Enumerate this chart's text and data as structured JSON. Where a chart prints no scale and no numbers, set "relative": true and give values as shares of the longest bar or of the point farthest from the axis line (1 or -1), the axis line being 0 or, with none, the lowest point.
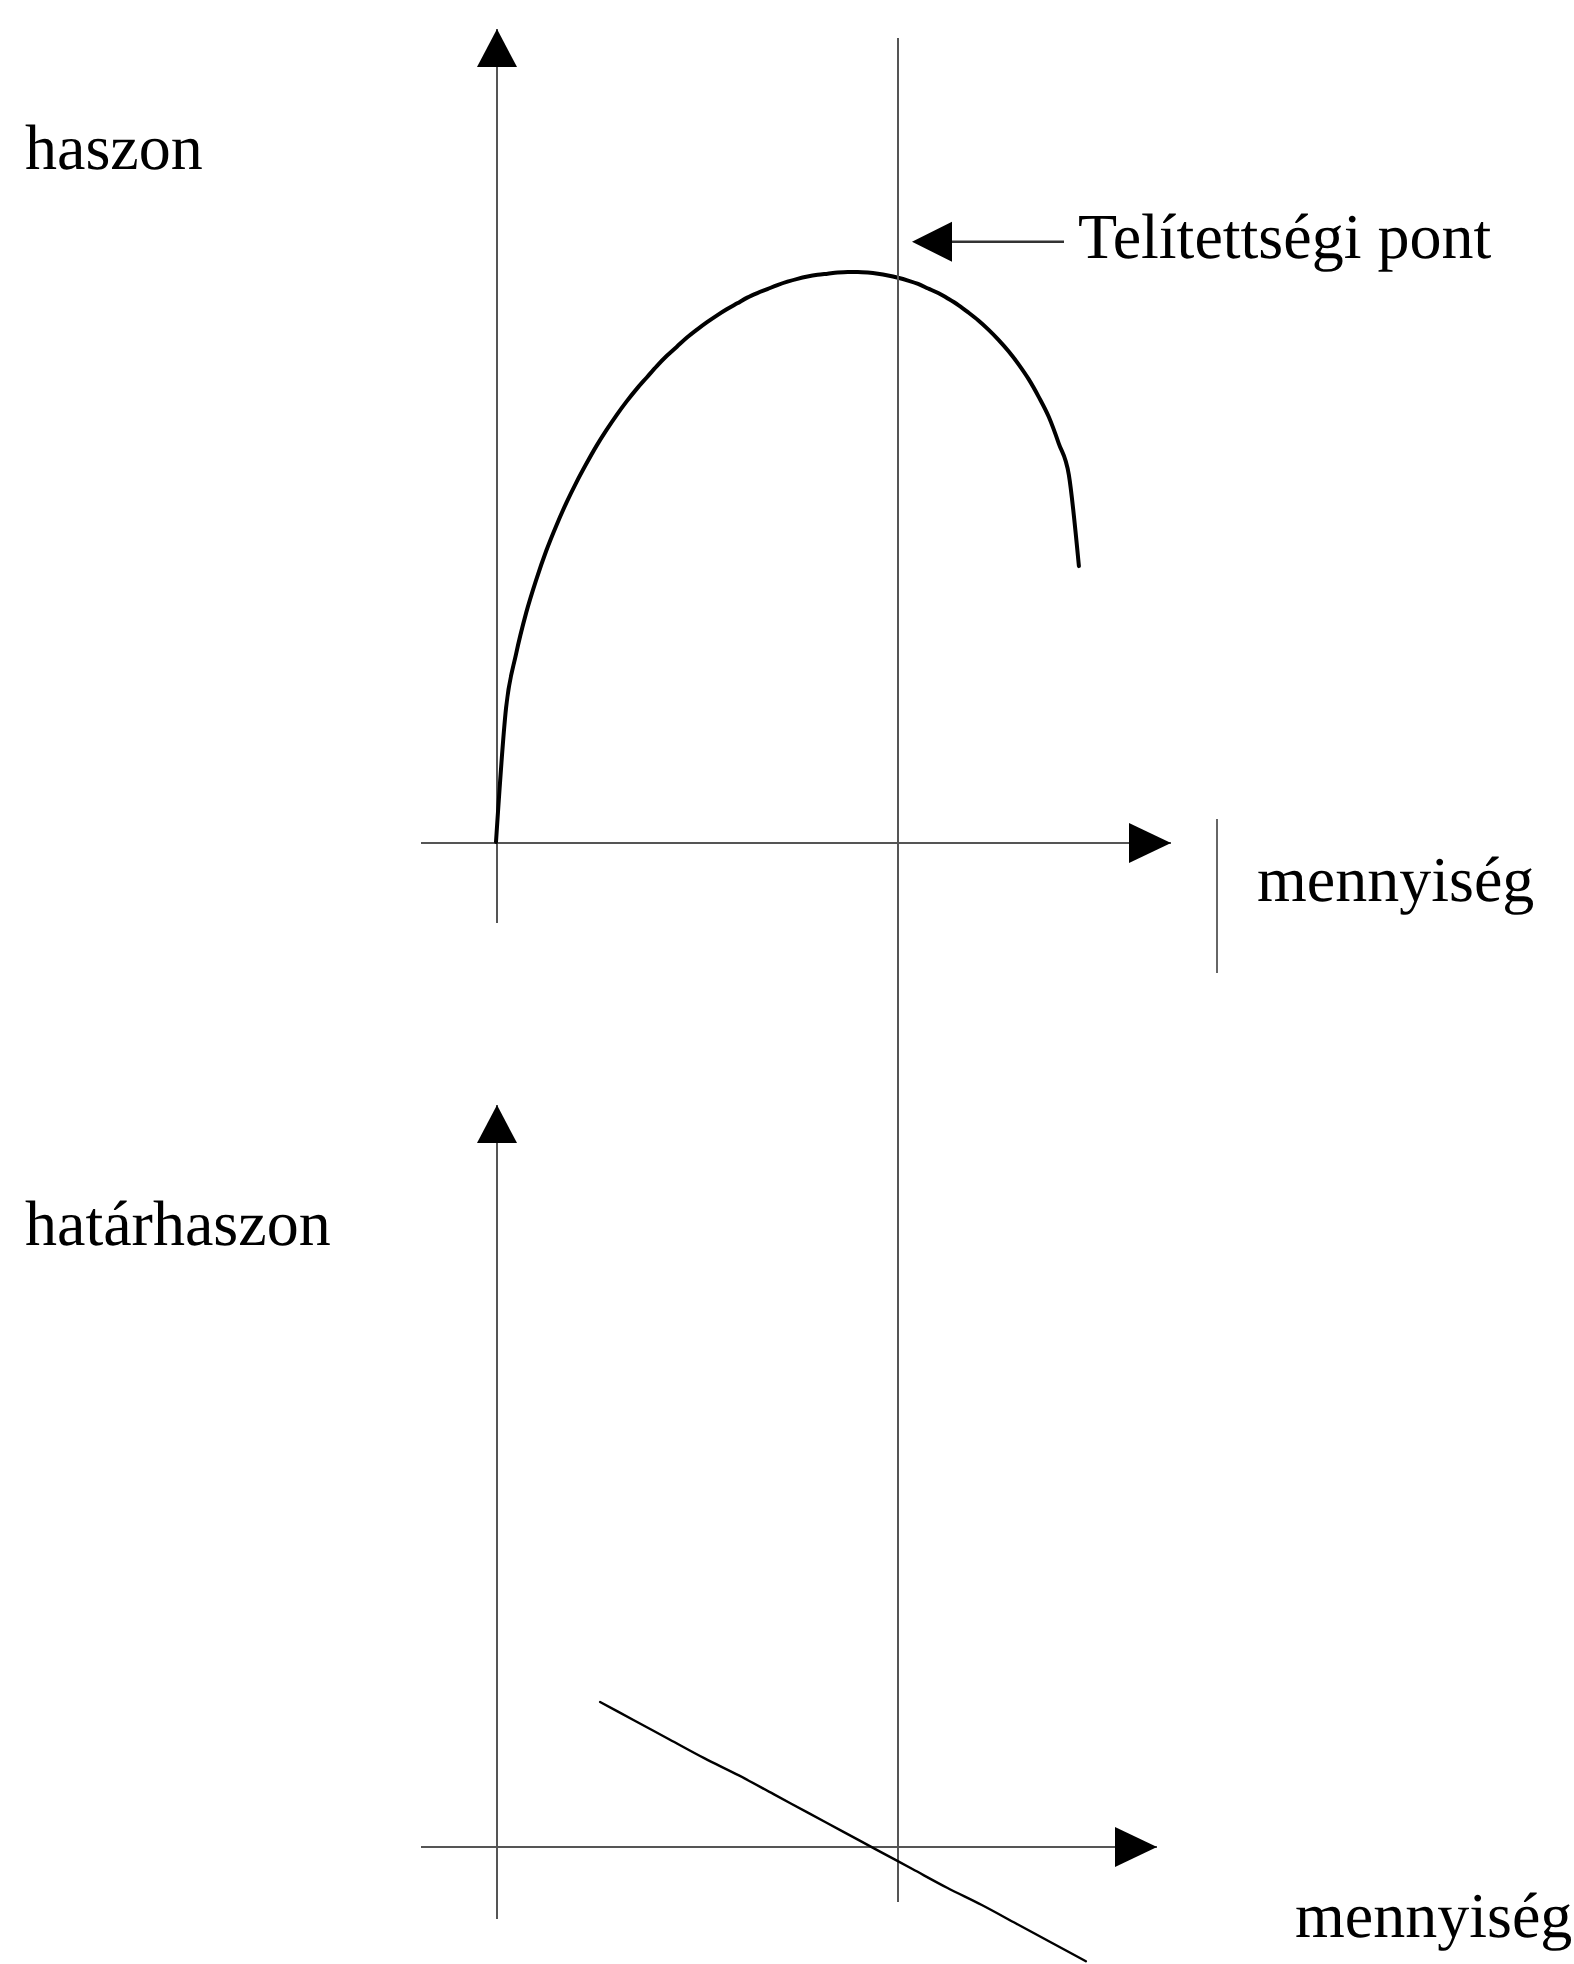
{
  "chart_data": [
    {
      "type": "line",
      "ylabel": "haszon",
      "xlabel": "mennyiség",
      "relative": true,
      "categories": [
        null,
        null,
        null,
        null,
        null,
        null,
        null,
        null,
        null,
        null,
        null,
        null,
        null,
        null,
        null,
        null,
        null,
        null,
        null,
        null,
        null,
        null,
        null,
        null,
        null,
        null,
        null,
        null,
        null,
        null,
        null,
        null,
        null,
        null,
        null,
        null,
        null,
        null,
        null,
        null,
        null,
        null,
        null,
        null,
        null,
        null,
        null,
        null,
        null,
        null,
        null,
        null,
        null,
        null,
        null,
        null,
        null,
        null,
        null
      ],
      "series": [
        {
          "color": "#000000",
          "values": [
            0,
            0.235,
            0.33,
            0.402,
            0.46,
            0.511,
            0.555,
            0.595,
            0.631,
            0.664,
            0.695,
            0.723,
            0.749,
            0.773,
            0.795,
            0.815,
            0.835,
            0.853,
            0.869,
            0.885,
            0.899,
            0.912,
            0.924,
            0.935,
            0.945,
            0.955,
            0.963,
            0.97,
            0.977,
            0.983,
            0.988,
            0.992,
            0.995,
            0.997,
            0.999,
            1,
            1,
            0.999,
            0.997,
            0.994,
            0.99,
            0.985,
            0.979,
            0.971,
            0.963,
            0.953,
            0.942,
            0.929,
            0.915,
            0.899,
            0.881,
            0.861,
            0.838,
            0.812,
            0.781,
            0.746,
            0.699,
            0.644,
            0.484
          ]
        }
      ],
      "annotations": [
        "Telítettségi pont"
      ]
    },
    {
      "type": "line",
      "ylabel": "határhaszon",
      "xlabel": "mennyiség",
      "relative": true,
      "categories": [
        null,
        null,
        null,
        null,
        null,
        null,
        null,
        null,
        null,
        null,
        null,
        null,
        null,
        null,
        null,
        null,
        null,
        null
      ],
      "series": [
        {
          "color": "#000000",
          "values": [
            null,
            null,
            null,
            1,
            0.87,
            0.74,
            0.61,
            0.49,
            0.36,
            0.23,
            0.1,
            -0.03,
            -0.16,
            -0.29,
            -0.41,
            -0.54,
            -0.67,
            -0.8
          ]
        }
      ]
    }
  ]
}
